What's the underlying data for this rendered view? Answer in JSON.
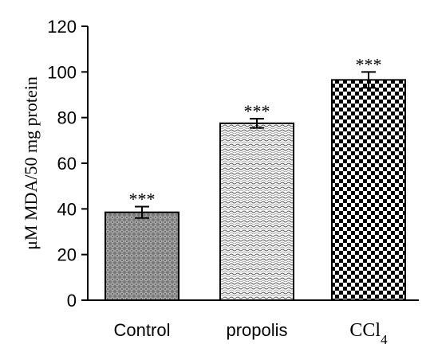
{
  "chart_data": {
    "type": "bar",
    "title": "",
    "ylabel": "μM MDA/50 mg protein",
    "xlabel": "",
    "ylim": [
      0,
      120
    ],
    "yticks": [
      0,
      20,
      40,
      60,
      80,
      100,
      120
    ],
    "categories": [
      "Control",
      "propolis",
      "CCl4"
    ],
    "category_labels": [
      {
        "text": "Control"
      },
      {
        "text": "propolis"
      },
      {
        "text": "CCl",
        "subscript": "4"
      }
    ],
    "values": [
      38.5,
      77.5,
      96.5
    ],
    "errors": [
      2.5,
      2.0,
      3.5
    ],
    "significance": [
      "***",
      "***",
      "***"
    ],
    "patterns": [
      "dense-diamond",
      "wavy-dots",
      "checkerboard"
    ],
    "grid": false,
    "legend": "none",
    "colors": {
      "fill": "#000000",
      "background": "#ffffff"
    }
  }
}
